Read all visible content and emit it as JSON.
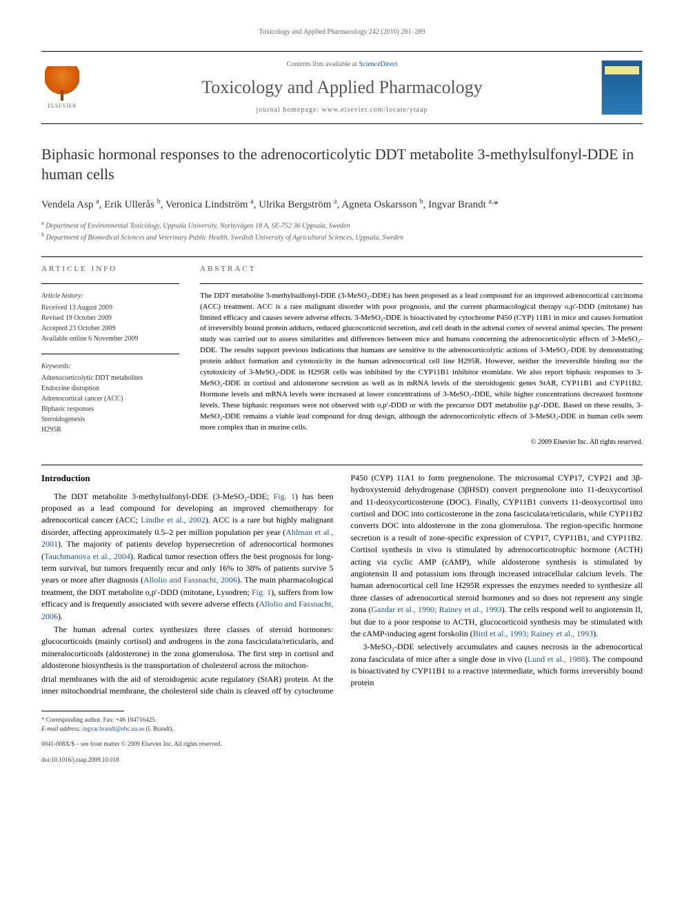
{
  "pageHeader": "Toxicology and Applied Pharmacology 242 (2010) 281–289",
  "banner": {
    "contentsPrefix": "Contents lists available at ",
    "contentsLink": "ScienceDirect",
    "journalTitle": "Toxicology and Applied Pharmacology",
    "homepagePrefix": "journal homepage: ",
    "homepageUrl": "www.elsevier.com/locate/ytaap",
    "publisherName": "ELSEVIER"
  },
  "article": {
    "title": "Biphasic hormonal responses to the adrenocorticolytic DDT metabolite 3-methylsulfonyl-DDE in human cells",
    "authorsHtml": "Vendela Asp <sup>a</sup>, Erik Ullerås <sup>b</sup>, Veronica Lindström <sup>a</sup>, Ulrika Bergström <sup>a</sup>, Agneta Oskarsson <sup>b</sup>, Ingvar Brandt <sup>a,</sup>*",
    "affA": "Department of Environmental Toxicology, Uppsala University, Norbyvägen 18 A, SE-752 36 Uppsala, Sweden",
    "affB": "Department of Biomedical Sciences and Veterinary Public Health, Swedish University of Agricultural Sciences, Uppsala, Sweden"
  },
  "info": {
    "sectionLabel": "article info",
    "historyLabel": "Article history:",
    "received": "Received 13 August 2009",
    "revised": "Revised 19 October 2009",
    "accepted": "Accepted 23 October 2009",
    "online": "Available online 6 November 2009",
    "keywordsLabel": "Keywords:",
    "kw1": "Adrenocorticolytic DDT metabolites",
    "kw2": "Endocrine disruption",
    "kw3": "Adrenocortical cancer (ACC)",
    "kw4": "Biphasic responses",
    "kw5": "Steroidogenesis",
    "kw6": "H295R"
  },
  "abstract": {
    "sectionLabel": "abstract",
    "text": "The DDT metabolite 3-methylsulfonyl-DDE (3-MeSO₂-DDE) has been proposed as a lead compound for an improved adrenocortical carcinoma (ACC) treatment. ACC is a rare malignant disorder with poor prognosis, and the current pharmacological therapy o,p′-DDD (mitotane) has limited efficacy and causes severe adverse effects. 3-MeSO₂-DDE is bioactivated by cytochrome P450 (CYP) 11B1 in mice and causes formation of irreversibly bound protein adducts, reduced glucocorticoid secretion, and cell death in the adrenal cortex of several animal species. The present study was carried out to assess similarities and differences between mice and humans concerning the adrenocorticolytic effects of 3-MeSO₂-DDE. The results support previous indications that humans are sensitive to the adrenocorticolytic actions of 3-MeSO₂-DDE by demonstrating protein adduct formation and cytotoxicity in the human adrenocortical cell line H295R. However, neither the irreversible binding nor the cytotoxicity of 3-MeSO₂-DDE in H295R cells was inhibited by the CYP11B1 inhibitor etomidate. We also report biphasic responses to 3-MeSO₂-DDE in cortisol and aldosterone secretion as well as in mRNA levels of the steroidogenic genes StAR, CYP11B1 and CYP11B2. Hormone levels and mRNA levels were increased at lower concentrations of 3-MeSO₂-DDE, while higher concentrations decreased hormone levels. These biphasic responses were not observed with o,p′-DDD or with the precursor DDT metabolite p,p′-DDE. Based on these results, 3-MeSO₂-DDE remains a viable lead compound for drug design, although the adrenocorticolytic effects of 3-MeSO₂-DDE in human cells seem more complex than in murine cells.",
    "copyright": "© 2009 Elsevier Inc. All rights reserved."
  },
  "body": {
    "introHeading": "Introduction",
    "p1a": "The DDT metabolite 3-methylsulfonyl-DDE (3-MeSO₂-DDE; ",
    "p1link1": "Fig. 1",
    "p1b": ") has been proposed as a lead compound for developing an improved chemotherapy for adrenocortical cancer (ACC; ",
    "p1link2": "Lindhe et al., 2002",
    "p1c": "). ACC is a rare but highly malignant disorder, affecting approximately 0.5–2 per million population per year (",
    "p1link3": "Ahlman et al., 2001",
    "p1d": "). The majority of patients develop hypersecretion of adrenocortical hormones (",
    "p1link4": "Tauchmanova et al., 2004",
    "p1e": "). Radical tumor resection offers the best prognosis for long-term survival, but tumors frequently recur and only 16% to 38% of patients survive 5 years or more after diagnosis (",
    "p1link5": "Allolio and Fassnacht, 2006",
    "p1f": "). The main pharmacological treatment, the DDT metabolite o,p′-DDD (mitotane, Lysodren; ",
    "p1link6": "Fig. 1",
    "p1g": "), suffers from low efficacy and is frequently associated with severe adverse effects (",
    "p1link7": "Allolio and Fassnacht, 2006",
    "p1h": ").",
    "p2": "The human adrenal cortex synthesizes three classes of steroid hormones: glucocorticoids (mainly cortisol) and androgens in the zona fasciculata/reticularis, and mineralocorticoids (aldosterone) in the zona glomerulosa. The first step in cortisol and aldosterone biosynthesis is the transportation of cholesterol across the mitochon-",
    "p3a": "drial membranes with the aid of steroidogenic acute regulatory (StAR) protein. At the inner mitochondrial membrane, the cholesterol side chain is cleaved off by cytochrome P450 (CYP) 11A1 to form pregnenolone. The microsomal CYP17, CYP21 and 3β-hydroxysteroid dehydrogenase (3βHSD) convert pregnenolone into 11-deoxycortisol and 11-deoxycorticosterone (DOC). Finally, CYP11B1 converts 11-deoxycortisol into cortisol and DOC into corticosterone in the zona fasciculata/reticularis, while CYP11B2 converts DOC into aldosterone in the zona glomerulosa. The region-specific hormone secretion is a result of zone-specific expression of CYP17, CYP11B1, and CYP11B2. Cortisol synthesis in vivo is stimulated by adrenocorticotrophic hormone (ACTH) acting via cyclic AMP (cAMP), while aldosterone synthesis is stimulated by angiotensin II and potassium ions through increased intracellular calcium levels. The human adrenocortical cell line H295R expresses the enzymes needed to synthesize all three classes of adrenocortical steroid hormones and so does not represent any single zona (",
    "p3link1": "Gazdar et al., 1990; Rainey et al., 1993",
    "p3b": "). The cells respond well to angiotensin II, but due to a poor response to ACTH, glucocorticoid synthesis may be stimulated with the cAMP-inducing agent forskolin (",
    "p3link2": "Bird et al., 1993; Rainey et al., 1993",
    "p3c": ").",
    "p4a": "3-MeSO₂-DDE selectively accumulates and causes necrosis in the adrenocortical zona fasciculata of mice after a single dose in vivo (",
    "p4link1": "Lund et al., 1988",
    "p4b": "). The compound is bioactivated by CYP11B1 to a reactive intermediate, which forms irreversibly bound protein"
  },
  "footer": {
    "corrLabel": "* Corresponding author. Fax: +46 184716425.",
    "emailLabel": "E-mail address: ",
    "email": "ingvar.brandt@ebc.uu.se",
    "emailSuffix": " (I. Brandt).",
    "frontMatter": "0041-008X/$ – see front matter © 2009 Elsevier Inc. All rights reserved.",
    "doi": "doi:10.1016/j.taap.2009.10.018"
  },
  "colors": {
    "linkColor": "#1a5490",
    "textColor": "#000000",
    "grayText": "#666666",
    "background": "#ffffff"
  },
  "typography": {
    "bodyFontSize": 12,
    "titleFontSize": 22,
    "journalTitleFontSize": 26,
    "abstractFontSize": 11,
    "smallFontSize": 10
  }
}
